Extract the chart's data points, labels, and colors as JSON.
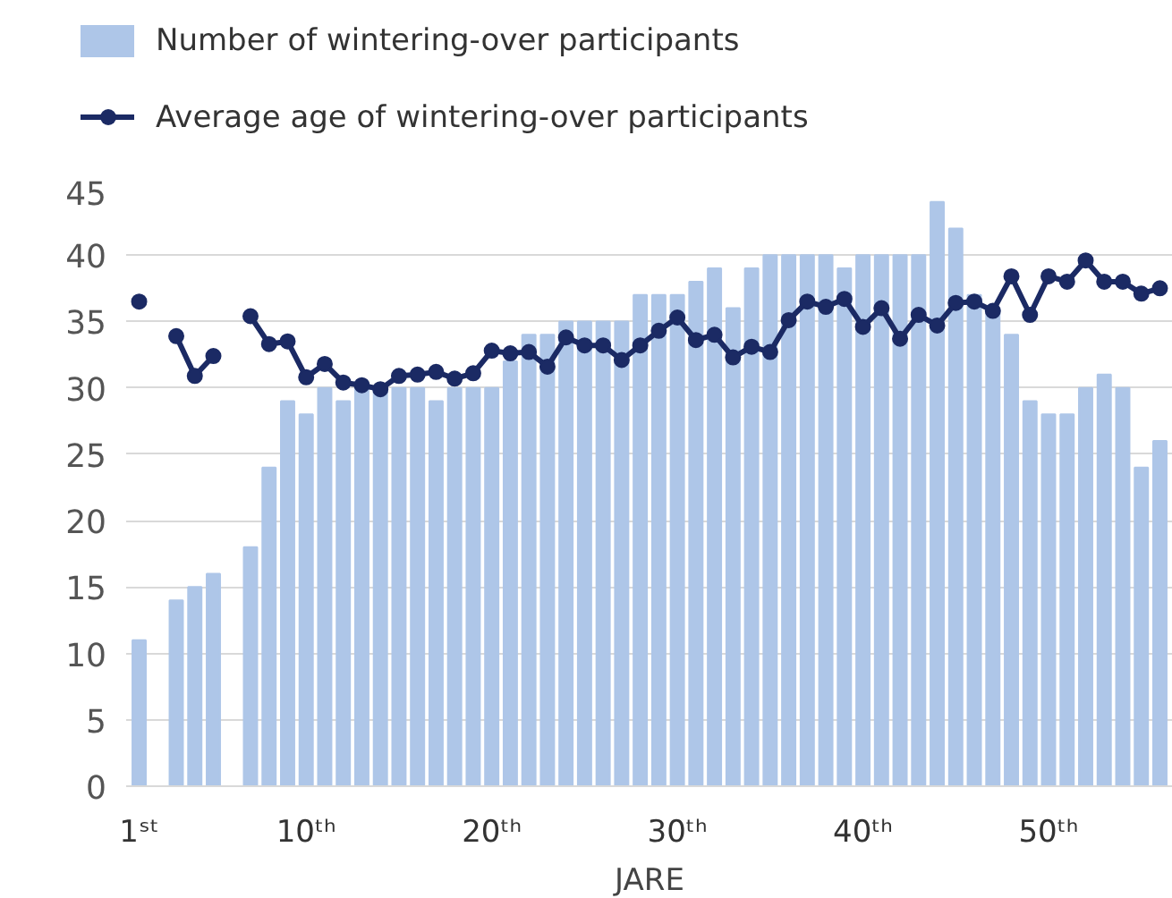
{
  "chart_data": {
    "type": "bar",
    "xlabel": "JARE",
    "categories": [
      "1ˢᵗ",
      null,
      null,
      null,
      null,
      null,
      null,
      null,
      null,
      "10ᵗʰ",
      null,
      null,
      null,
      null,
      null,
      null,
      null,
      null,
      null,
      "20ᵗʰ",
      null,
      null,
      null,
      null,
      null,
      null,
      null,
      null,
      null,
      "30ᵗʰ",
      null,
      null,
      null,
      null,
      null,
      null,
      null,
      null,
      null,
      "40ᵗʰ",
      null,
      null,
      null,
      null,
      null,
      null,
      null,
      null,
      null,
      "50ᵗʰ",
      null,
      null,
      null,
      null,
      null,
      null
    ],
    "series": [
      {
        "name": "Number of wintering-over participants",
        "color": "#aec6e8",
        "values": [
          11,
          null,
          14,
          15,
          16,
          null,
          18,
          24,
          29,
          28,
          30,
          29,
          30,
          30,
          30,
          30,
          29,
          30,
          30,
          30,
          32,
          34,
          34,
          35,
          35,
          35,
          35,
          37,
          37,
          37,
          38,
          39,
          36,
          39,
          40,
          40,
          40,
          40,
          39,
          40,
          40,
          40,
          40,
          44,
          42,
          37,
          36,
          34,
          29,
          28,
          28,
          30,
          31,
          30,
          24,
          26
        ]
      },
      {
        "name": "Average age of wintering-over participants",
        "type": "line",
        "color": "#1b2a64",
        "marker": "circle",
        "values": [
          36.5,
          null,
          33.9,
          30.9,
          32.4,
          null,
          35.4,
          33.3,
          33.5,
          30.8,
          31.8,
          30.4,
          30.2,
          29.9,
          30.9,
          31.0,
          31.2,
          30.7,
          31.1,
          32.8,
          32.6,
          32.7,
          31.6,
          33.8,
          33.2,
          33.2,
          32.1,
          33.2,
          34.3,
          35.3,
          33.6,
          34.0,
          32.3,
          33.1,
          32.7,
          35.1,
          36.5,
          36.1,
          36.7,
          34.6,
          36.0,
          33.7,
          35.5,
          34.7,
          36.4,
          36.5,
          35.8,
          38.4,
          35.5,
          38.4,
          38.0,
          39.6,
          38.0,
          38.0,
          37.1,
          37.5
        ]
      }
    ],
    "ylim": [
      0,
      45
    ],
    "yticks": [
      0,
      5,
      10,
      15,
      20,
      25,
      30,
      35,
      40,
      45
    ],
    "grid": "y",
    "legend": "top left"
  }
}
